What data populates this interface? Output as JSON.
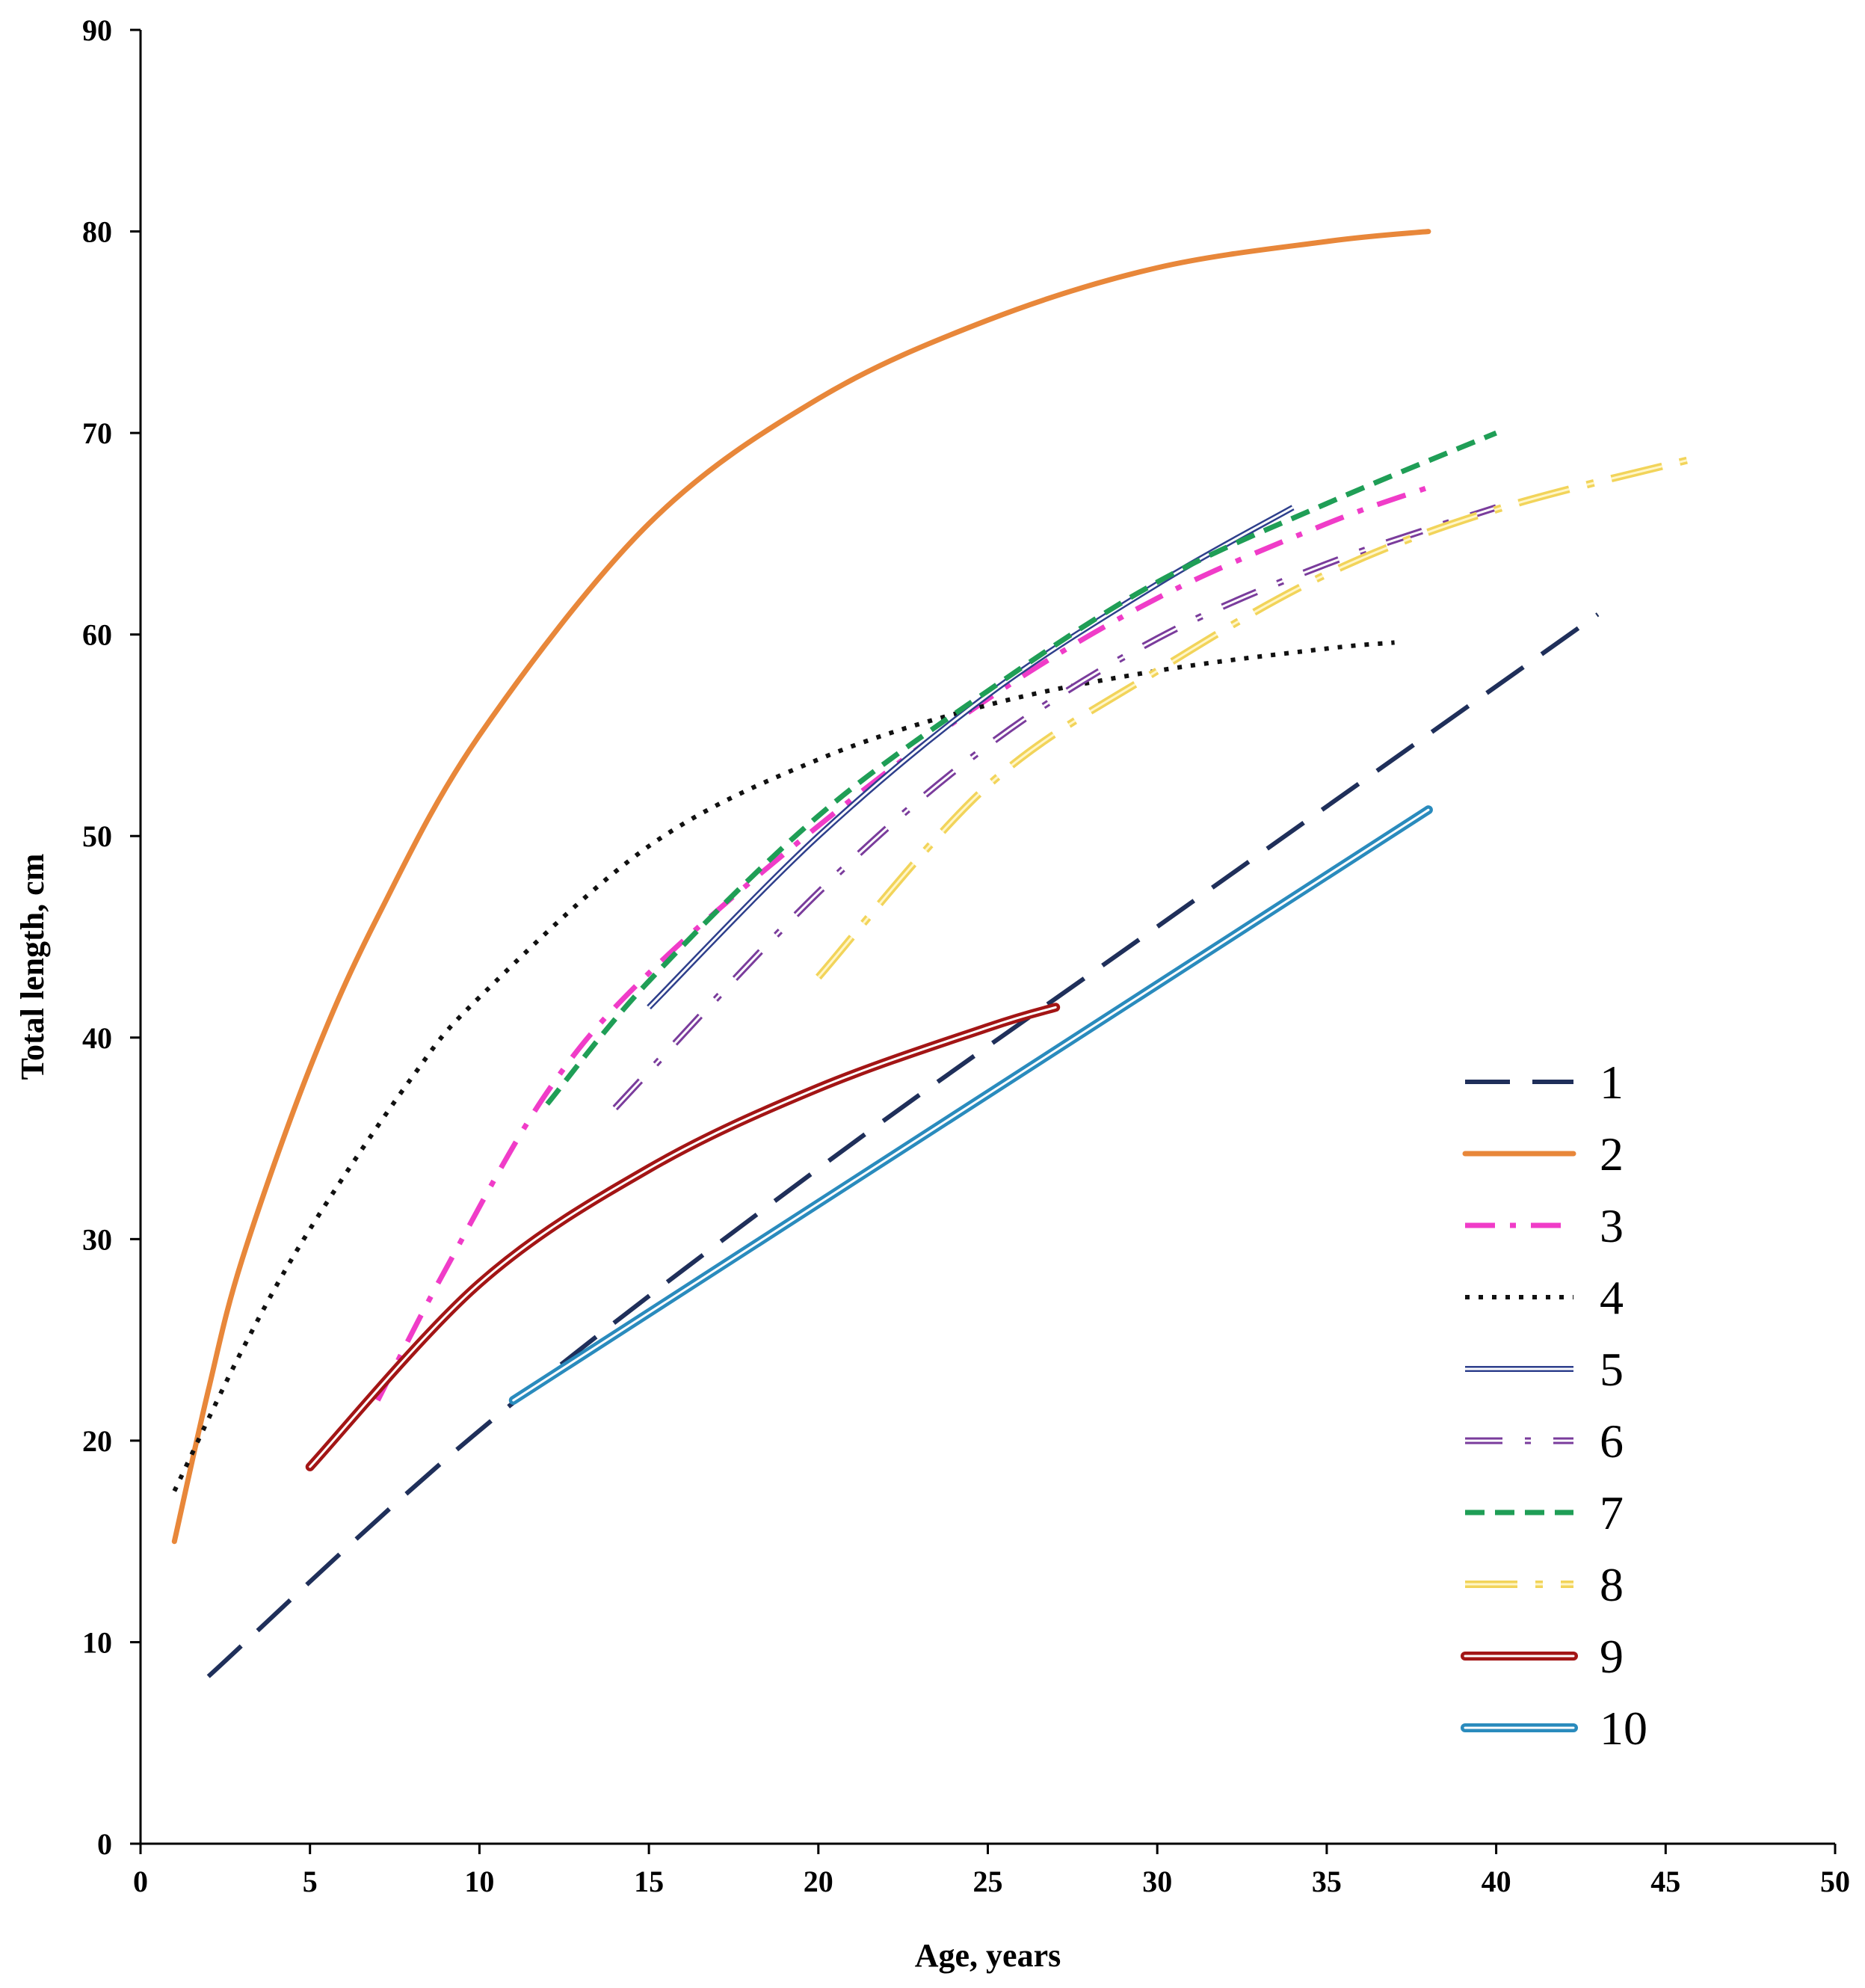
{
  "chart_data": {
    "type": "line",
    "title": "",
    "xlabel": "Age, years",
    "ylabel": "Total length, cm",
    "xlim": [
      0,
      50
    ],
    "ylim": [
      0,
      90
    ],
    "xticks": [
      "0",
      "5",
      "10",
      "15",
      "20",
      "25",
      "30",
      "35",
      "40",
      "45",
      "50"
    ],
    "yticks": [
      "0",
      "10",
      "20",
      "30",
      "40",
      "50",
      "60",
      "70",
      "80",
      "90"
    ],
    "grid": false,
    "legend_position": "bottom-right",
    "series": [
      {
        "name": "1",
        "color": "#1f2f5a",
        "style": "longdash",
        "x": [
          2,
          10,
          20,
          30,
          43
        ],
        "y": [
          8.3,
          20.5,
          33.5,
          45.5,
          61
        ]
      },
      {
        "name": "2",
        "color": "#e8873a",
        "style": "solid",
        "x": [
          1,
          2,
          3,
          5,
          7,
          10,
          15,
          20,
          25,
          30,
          35,
          38
        ],
        "y": [
          15,
          22.5,
          29,
          38.5,
          46,
          55,
          65.5,
          71.7,
          75.6,
          78.2,
          79.5,
          80
        ]
      },
      {
        "name": "3",
        "color": "#f03cc8",
        "style": "dashdot",
        "x": [
          7,
          9,
          12,
          15,
          20,
          25,
          30,
          35,
          38
        ],
        "y": [
          22,
          28.5,
          37.3,
          43.2,
          50.5,
          56.8,
          61.8,
          65.5,
          67.3
        ]
      },
      {
        "name": "4",
        "color": "#111111",
        "style": "dotted",
        "x": [
          1,
          3,
          5,
          8,
          10,
          15,
          20,
          25,
          30,
          35,
          37
        ],
        "y": [
          17.5,
          24.5,
          30.5,
          38,
          42,
          49.5,
          53.8,
          56.5,
          58.2,
          59.3,
          59.6
        ]
      },
      {
        "name": "5",
        "color": "#2e3f8c",
        "style": "double",
        "x": [
          15,
          20,
          25,
          30,
          34
        ],
        "y": [
          41.5,
          50,
          57,
          62.5,
          66.3
        ]
      },
      {
        "name": "6",
        "color": "#7a3c9c",
        "style": "double-dot",
        "x": [
          14,
          20,
          25,
          30,
          35,
          40
        ],
        "y": [
          36.5,
          47.2,
          54.5,
          59.8,
          63.5,
          66.3
        ]
      },
      {
        "name": "7",
        "color": "#1f9e56",
        "style": "dashed",
        "x": [
          12,
          15,
          20,
          25,
          30,
          35,
          40
        ],
        "y": [
          36.7,
          42.8,
          51,
          57.2,
          62.6,
          66.5,
          70
        ]
      },
      {
        "name": "8",
        "color": "#f2d45a",
        "style": "double-longdash",
        "x": [
          20,
          25,
          30,
          35,
          40,
          46
        ],
        "y": [
          43,
          52.5,
          58.2,
          63,
          66.2,
          68.8
        ]
      },
      {
        "name": "9",
        "color": "#a31515",
        "style": "double-thick",
        "x": [
          5,
          10,
          15,
          20,
          25,
          27
        ],
        "y": [
          18.7,
          27.8,
          33.5,
          37.5,
          40.5,
          41.5
        ]
      },
      {
        "name": "10",
        "color": "#2a8bbd",
        "style": "double-thick",
        "x": [
          11,
          38
        ],
        "y": [
          22,
          51.3
        ]
      }
    ]
  }
}
